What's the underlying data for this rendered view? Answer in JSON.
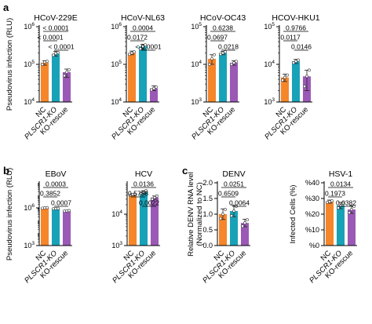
{
  "panel_labels": [
    "a",
    "b",
    "c"
  ],
  "colors": {
    "orange": "#f5862a",
    "teal": "#18a2b8",
    "purple": "#9b59b6"
  },
  "categories": [
    "NC",
    "PLSCR1-KO",
    "KO-rescue"
  ],
  "chart_data": [
    {
      "type": "bar",
      "panel": "a",
      "title": "HCoV-229E",
      "ylabel": "Pseudovirus infection (RLU)",
      "yscale": "log",
      "ylim": [
        10000,
        1000000
      ],
      "yticks": [
        {
          "v": 10000,
          "e": "4"
        },
        {
          "v": 100000,
          "e": "5"
        },
        {
          "v": 1000000,
          "e": "6"
        }
      ],
      "categories": [
        "NC",
        "PLSCR1-KO",
        "KO-rescue"
      ],
      "values": [
        110000,
        190000,
        62000
      ],
      "errors": [
        [
          95000,
          125000
        ],
        [
          165000,
          220000
        ],
        [
          45000,
          75000
        ]
      ],
      "points": [
        [
          100000,
          115000,
          120000
        ],
        [
          175000,
          195000,
          205000
        ],
        [
          50000,
          62000,
          72000
        ]
      ],
      "pvalues": [
        {
          "text": "< 0.0001",
          "from": 0,
          "to": 2
        },
        {
          "text": "< 0.0001",
          "from": 0,
          "to": 1
        },
        {
          "text": "< 0.0001",
          "from": 1,
          "to": 2
        }
      ]
    },
    {
      "type": "bar",
      "panel": "a",
      "title": "HCoV-NL63",
      "yscale": "log",
      "ylim": [
        10000,
        1000000
      ],
      "yticks": [
        {
          "v": 10000,
          "e": "4"
        },
        {
          "v": 100000,
          "e": "5"
        },
        {
          "v": 1000000,
          "e": "6"
        }
      ],
      "categories": [
        "NC",
        "PLSCR1-KO",
        "KO-rescue"
      ],
      "values": [
        200000,
        300000,
        23000
      ],
      "errors": [
        [
          180000,
          225000
        ],
        [
          250000,
          340000
        ],
        [
          20000,
          27000
        ]
      ],
      "points": [
        [
          185000,
          200000,
          215000
        ],
        [
          260000,
          300000,
          330000
        ],
        [
          21000,
          23000,
          25000
        ]
      ],
      "pvalues": [
        {
          "text": "0.0004",
          "from": 0,
          "to": 2
        },
        {
          "text": "0.0172",
          "from": 0,
          "to": 1
        },
        {
          "text": "< 0.0001",
          "from": 1,
          "to": 2
        }
      ]
    },
    {
      "type": "bar",
      "panel": "a",
      "title": "HCoV-OC43",
      "yscale": "log",
      "ylim": [
        1000,
        100000
      ],
      "yticks": [
        {
          "v": 1000,
          "e": "3"
        },
        {
          "v": 10000,
          "e": "4"
        },
        {
          "v": 100000,
          "e": "5"
        }
      ],
      "categories": [
        "NC",
        "PLSCR1-KO",
        "KO-rescue"
      ],
      "values": [
        14000,
        20000,
        11000
      ],
      "errors": [
        [
          10000,
          18000
        ],
        [
          18000,
          22000
        ],
        [
          9500,
          12500
        ]
      ],
      "points": [
        [
          10000,
          14000,
          18000
        ],
        [
          18500,
          20000,
          21500
        ],
        [
          10000,
          11000,
          12000
        ]
      ],
      "pvalues": [
        {
          "text": "0.6238",
          "from": 0,
          "to": 2
        },
        {
          "text": "0.0697",
          "from": 0,
          "to": 1
        },
        {
          "text": "0.0218",
          "from": 1,
          "to": 2
        }
      ]
    },
    {
      "type": "bar",
      "panel": "a",
      "title": "HCOV-HKU1",
      "yscale": "log",
      "ylim": [
        1000,
        100000
      ],
      "yticks": [
        {
          "v": 1000,
          "e": "3"
        },
        {
          "v": 10000,
          "e": "4"
        },
        {
          "v": 100000,
          "e": "5"
        }
      ],
      "categories": [
        "NC",
        "PLSCR1-KO",
        "KO-rescue"
      ],
      "values": [
        4500,
        12000,
        4800
      ],
      "errors": [
        [
          3500,
          5500
        ],
        [
          10500,
          13500
        ],
        [
          2000,
          7000
        ]
      ],
      "points": [
        [
          3800,
          4500,
          5200
        ],
        [
          11000,
          12000,
          13000
        ],
        [
          2600,
          4800,
          7000
        ]
      ],
      "pvalues": [
        {
          "text": "0.9766",
          "from": 0,
          "to": 2
        },
        {
          "text": "0.0117",
          "from": 0,
          "to": 1
        },
        {
          "text": "0.0146",
          "from": 1,
          "to": 2
        }
      ]
    },
    {
      "type": "bar",
      "panel": "b",
      "title": "EBoV",
      "ylabel": "Pseudovirus infection (RLU)",
      "yscale": "log",
      "ylim": [
        1000,
        100000000
      ],
      "yticks": [
        {
          "v": 1000,
          "e": "3"
        },
        {
          "v": 1000000,
          "e": "6"
        }
      ],
      "categories": [
        "NC",
        "PLSCR1-KO",
        "KO-rescue"
      ],
      "values": [
        1000000,
        880000,
        580000
      ],
      "errors": [
        [
          920000,
          1080000
        ],
        [
          840000,
          920000
        ],
        [
          540000,
          620000
        ]
      ],
      "points": [
        [
          950000,
          1000000,
          1050000
        ],
        [
          850000,
          880000,
          910000
        ],
        [
          550000,
          580000,
          610000
        ]
      ],
      "pvalues": [
        {
          "text": "0.0003",
          "from": 0,
          "to": 2
        },
        {
          "text": "0.3852",
          "from": 0,
          "to": 1
        },
        {
          "text": "0.0007",
          "from": 1,
          "to": 2
        }
      ]
    },
    {
      "type": "bar",
      "panel": "b",
      "title": "HCV",
      "yscale": "log",
      "ylim": [
        1000,
        100000
      ],
      "yticks": [
        {
          "v": 1000,
          "e": "3"
        },
        {
          "v": 10000,
          "e": "4"
        }
      ],
      "categories": [
        "NC",
        "PLSCR1-KO",
        "KO-rescue"
      ],
      "values": [
        42000,
        50000,
        34000
      ],
      "errors": [
        [
          39000,
          45000
        ],
        [
          45000,
          56000
        ],
        [
          30000,
          38000
        ]
      ],
      "points": [
        [
          40000,
          42000,
          44000
        ],
        [
          45000,
          50000,
          56000
        ],
        [
          30000,
          34000,
          38000
        ]
      ],
      "pvalues": [
        {
          "text": "0.0136",
          "from": 0,
          "to": 2
        },
        {
          "text": "0.5788",
          "from": 0,
          "to": 1
        },
        {
          "text": "0.0022",
          "from": 1,
          "to": 2
        }
      ]
    },
    {
      "type": "bar",
      "panel": "c",
      "title": "DENV",
      "ylabel": "Relative DENV RNA level (Normalized to NC)",
      "yscale": "linear",
      "ylim": [
        0,
        2.0
      ],
      "yticks": [
        {
          "v": 0,
          "label": "0.0"
        },
        {
          "v": 0.5,
          "label": "0.5"
        },
        {
          "v": 1.0,
          "label": "1.0"
        },
        {
          "v": 1.5,
          "label": "1.5"
        },
        {
          "v": 2.0,
          "label": "2.0"
        }
      ],
      "categories": [
        "NC",
        "PLSCR1-KO",
        "KO-rescue"
      ],
      "values": [
        1.0,
        1.1,
        0.72
      ],
      "errors": [
        [
          0.83,
          1.17
        ],
        [
          0.92,
          1.28
        ],
        [
          0.6,
          0.84
        ]
      ],
      "points": [
        [
          0.86,
          1.0,
          1.15
        ],
        [
          0.95,
          1.1,
          1.25
        ],
        [
          0.62,
          0.72,
          0.82
        ]
      ],
      "pvalues": [
        {
          "text": "0.0251",
          "from": 0,
          "to": 2
        },
        {
          "text": "0.6509",
          "from": 0,
          "to": 1
        },
        {
          "text": "0.0064",
          "from": 1,
          "to": 2
        }
      ]
    },
    {
      "type": "bar",
      "panel": "c",
      "title": "HSV-1",
      "ylabel": "Infected Cells (%)",
      "yscale": "linear",
      "ylim": [
        0,
        40
      ],
      "yticks": [
        {
          "v": 0,
          "label": "%0"
        },
        {
          "v": 10,
          "label": "%10"
        },
        {
          "v": 20,
          "label": "%20"
        },
        {
          "v": 30,
          "label": "%30"
        },
        {
          "v": 40,
          "label": "%40"
        }
      ],
      "categories": [
        "NC",
        "PLSCR1-KO",
        "KO-rescue"
      ],
      "values": [
        28,
        25.5,
        23
      ],
      "errors": [
        [
          27,
          29
        ],
        [
          23.5,
          27.5
        ],
        [
          20.5,
          25.5
        ]
      ],
      "points": [
        [
          27.5,
          28,
          28.5
        ],
        [
          24,
          25.5,
          27
        ],
        [
          21,
          23,
          25
        ]
      ],
      "pvalues": [
        {
          "text": "0.0134",
          "from": 0,
          "to": 2
        },
        {
          "text": "0.1973",
          "from": 0,
          "to": 1
        },
        {
          "text": "0.0382",
          "from": 1,
          "to": 2
        }
      ]
    }
  ]
}
